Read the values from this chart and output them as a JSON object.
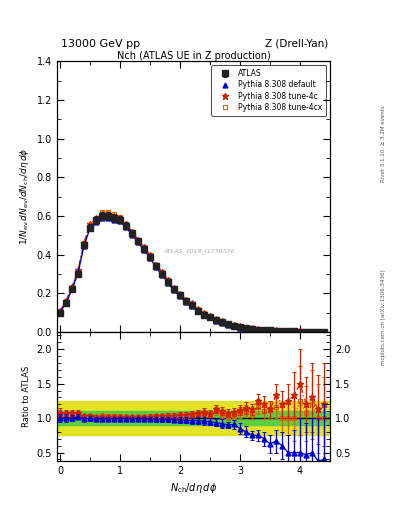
{
  "title_top": "13000 GeV pp",
  "title_right": "Z (Drell-Yan)",
  "plot_title": "Nch (ATLAS UE in Z production)",
  "ylabel_main": "1/N_{ev} dN_{ev}/dN_{ch}/dη dφ",
  "ylabel_ratio": "Ratio to ATLAS",
  "xlabel": "N_{ch}/dη dφ",
  "right_label1": "Rivet 3.1.10, ≥ 3.2M events",
  "right_label2": "mcplots.cern.ch [arXiv:1306.3436]",
  "watermark": "ATLAS_2019_I1730326",
  "atlas_x": [
    0.0,
    0.1,
    0.2,
    0.3,
    0.4,
    0.5,
    0.6,
    0.7,
    0.8,
    0.9,
    1.0,
    1.1,
    1.2,
    1.3,
    1.4,
    1.5,
    1.6,
    1.7,
    1.8,
    1.9,
    2.0,
    2.1,
    2.2,
    2.3,
    2.4,
    2.5,
    2.6,
    2.7,
    2.8,
    2.9,
    3.0,
    3.1,
    3.2,
    3.3,
    3.4,
    3.5,
    3.6,
    3.7,
    3.8,
    3.9,
    4.0,
    4.1,
    4.2,
    4.3,
    4.4
  ],
  "atlas_y": [
    0.1,
    0.15,
    0.22,
    0.3,
    0.45,
    0.54,
    0.58,
    0.6,
    0.6,
    0.59,
    0.58,
    0.55,
    0.51,
    0.47,
    0.43,
    0.39,
    0.34,
    0.3,
    0.26,
    0.22,
    0.19,
    0.16,
    0.14,
    0.11,
    0.09,
    0.08,
    0.06,
    0.05,
    0.04,
    0.033,
    0.026,
    0.02,
    0.016,
    0.012,
    0.01,
    0.008,
    0.006,
    0.005,
    0.004,
    0.003,
    0.002,
    0.0015,
    0.001,
    0.0008,
    0.0005
  ],
  "atlas_yerr": [
    0.006,
    0.008,
    0.01,
    0.012,
    0.015,
    0.018,
    0.02,
    0.02,
    0.02,
    0.019,
    0.018,
    0.017,
    0.016,
    0.015,
    0.014,
    0.013,
    0.012,
    0.011,
    0.01,
    0.009,
    0.008,
    0.007,
    0.006,
    0.005,
    0.005,
    0.004,
    0.003,
    0.003,
    0.002,
    0.002,
    0.002,
    0.001,
    0.001,
    0.001,
    0.001,
    0.001,
    0.001,
    0.001,
    0.001,
    0.001,
    0.001,
    0.001,
    0.001,
    0.001,
    0.001
  ],
  "pythia_default_y": [
    0.1,
    0.15,
    0.22,
    0.305,
    0.447,
    0.537,
    0.571,
    0.592,
    0.592,
    0.582,
    0.572,
    0.543,
    0.504,
    0.464,
    0.424,
    0.384,
    0.334,
    0.295,
    0.255,
    0.215,
    0.185,
    0.155,
    0.135,
    0.106,
    0.086,
    0.076,
    0.056,
    0.046,
    0.036,
    0.03,
    0.022,
    0.016,
    0.012,
    0.009,
    0.007,
    0.005,
    0.004,
    0.003,
    0.002,
    0.0015,
    0.001,
    0.0007,
    0.0005,
    0.0003,
    0.0002
  ],
  "pythia_4c_y": [
    0.108,
    0.16,
    0.235,
    0.32,
    0.462,
    0.558,
    0.588,
    0.608,
    0.608,
    0.598,
    0.588,
    0.558,
    0.518,
    0.478,
    0.438,
    0.398,
    0.348,
    0.308,
    0.268,
    0.228,
    0.198,
    0.168,
    0.148,
    0.118,
    0.098,
    0.085,
    0.068,
    0.055,
    0.043,
    0.036,
    0.029,
    0.023,
    0.018,
    0.015,
    0.012,
    0.009,
    0.008,
    0.006,
    0.005,
    0.004,
    0.003,
    0.0018,
    0.0013,
    0.0009,
    0.0006
  ],
  "pythia_4cx_y": [
    0.106,
    0.158,
    0.232,
    0.318,
    0.458,
    0.555,
    0.585,
    0.622,
    0.62,
    0.608,
    0.593,
    0.56,
    0.518,
    0.478,
    0.438,
    0.398,
    0.348,
    0.308,
    0.268,
    0.228,
    0.196,
    0.166,
    0.146,
    0.116,
    0.096,
    0.083,
    0.066,
    0.053,
    0.041,
    0.034,
    0.028,
    0.022,
    0.017,
    0.014,
    0.011,
    0.009,
    0.007,
    0.005,
    0.004,
    0.003,
    0.0025,
    0.0016,
    0.0012,
    0.0008,
    0.0005
  ],
  "ratio_default_y": [
    1.0,
    1.0,
    1.0,
    1.02,
    0.99,
    0.995,
    0.985,
    0.987,
    0.987,
    0.987,
    0.987,
    0.987,
    0.988,
    0.987,
    0.986,
    0.985,
    0.982,
    0.983,
    0.981,
    0.977,
    0.974,
    0.969,
    0.964,
    0.964,
    0.956,
    0.95,
    0.933,
    0.92,
    0.9,
    0.909,
    0.846,
    0.8,
    0.75,
    0.75,
    0.7,
    0.625,
    0.667,
    0.6,
    0.5,
    0.5,
    0.5,
    0.467,
    0.5,
    0.375,
    0.4
  ],
  "ratio_4c_y": [
    1.08,
    1.07,
    1.07,
    1.07,
    1.03,
    1.033,
    1.014,
    1.013,
    1.013,
    1.014,
    1.014,
    1.015,
    1.016,
    1.017,
    1.019,
    1.021,
    1.024,
    1.027,
    1.031,
    1.036,
    1.042,
    1.05,
    1.057,
    1.073,
    1.089,
    1.063,
    1.133,
    1.1,
    1.075,
    1.091,
    1.115,
    1.15,
    1.125,
    1.25,
    1.2,
    1.125,
    1.333,
    1.2,
    1.25,
    1.333,
    1.5,
    1.2,
    1.3,
    1.125,
    1.2
  ],
  "ratio_4cx_y": [
    1.06,
    1.053,
    1.055,
    1.06,
    1.018,
    1.028,
    1.009,
    1.037,
    1.033,
    1.031,
    1.022,
    1.018,
    1.016,
    1.017,
    1.019,
    1.021,
    1.024,
    1.027,
    1.031,
    1.036,
    1.032,
    1.038,
    1.043,
    1.055,
    1.067,
    1.038,
    1.1,
    1.06,
    1.025,
    1.03,
    1.077,
    1.1,
    1.063,
    1.167,
    1.1,
    1.125,
    1.167,
    1.0,
    1.0,
    1.0,
    1.25,
    1.067,
    1.2,
    1.0,
    1.0
  ],
  "ratio_default_err": [
    0.06,
    0.053,
    0.045,
    0.04,
    0.033,
    0.033,
    0.034,
    0.033,
    0.033,
    0.032,
    0.031,
    0.031,
    0.031,
    0.032,
    0.033,
    0.033,
    0.035,
    0.037,
    0.038,
    0.041,
    0.042,
    0.044,
    0.043,
    0.045,
    0.056,
    0.05,
    0.05,
    0.06,
    0.05,
    0.061,
    0.077,
    0.08,
    0.063,
    0.083,
    0.1,
    0.125,
    0.167,
    0.2,
    0.25,
    0.333,
    0.5,
    0.467,
    0.5,
    0.625,
    0.8
  ],
  "ratio_4c_err": [
    0.065,
    0.053,
    0.046,
    0.042,
    0.034,
    0.033,
    0.034,
    0.033,
    0.033,
    0.032,
    0.031,
    0.031,
    0.031,
    0.032,
    0.033,
    0.033,
    0.035,
    0.037,
    0.038,
    0.041,
    0.042,
    0.044,
    0.043,
    0.046,
    0.056,
    0.05,
    0.055,
    0.06,
    0.053,
    0.061,
    0.077,
    0.09,
    0.075,
    0.104,
    0.12,
    0.125,
    0.167,
    0.2,
    0.25,
    0.333,
    0.5,
    0.4,
    0.5,
    0.5,
    0.6
  ],
  "ratio_4cx_err": [
    0.064,
    0.053,
    0.046,
    0.042,
    0.034,
    0.033,
    0.034,
    0.033,
    0.033,
    0.032,
    0.031,
    0.031,
    0.031,
    0.032,
    0.033,
    0.033,
    0.035,
    0.037,
    0.038,
    0.041,
    0.042,
    0.044,
    0.043,
    0.046,
    0.056,
    0.05,
    0.055,
    0.06,
    0.053,
    0.061,
    0.077,
    0.09,
    0.075,
    0.104,
    0.12,
    0.125,
    0.167,
    0.2,
    0.25,
    0.333,
    0.5,
    0.4,
    0.5,
    0.5,
    0.6
  ],
  "ylim_main": [
    0.0,
    1.4
  ],
  "ylim_ratio": [
    0.4,
    2.2
  ],
  "xlim": [
    -0.05,
    4.5
  ],
  "main_yticks": [
    0.0,
    0.2,
    0.4,
    0.6,
    0.8,
    1.0,
    1.2,
    1.4
  ],
  "ratio_yticks": [
    0.5,
    1.0,
    1.5,
    2.0
  ],
  "xticks": [
    0,
    1,
    2,
    3,
    4
  ],
  "green_band": [
    0.9,
    1.1
  ],
  "yellow_band": [
    0.75,
    1.25
  ],
  "colors": {
    "atlas": "#222222",
    "pythia_default": "#0000CC",
    "pythia_4c": "#CC2200",
    "pythia_4cx": "#CC6600",
    "green_band": "#44CC44",
    "yellow_band": "#DDDD00"
  },
  "legend_labels": [
    "ATLAS",
    "Pythia 8.308 default",
    "Pythia 8.308 tune-4c",
    "Pythia 8.308 tune-4cx"
  ]
}
